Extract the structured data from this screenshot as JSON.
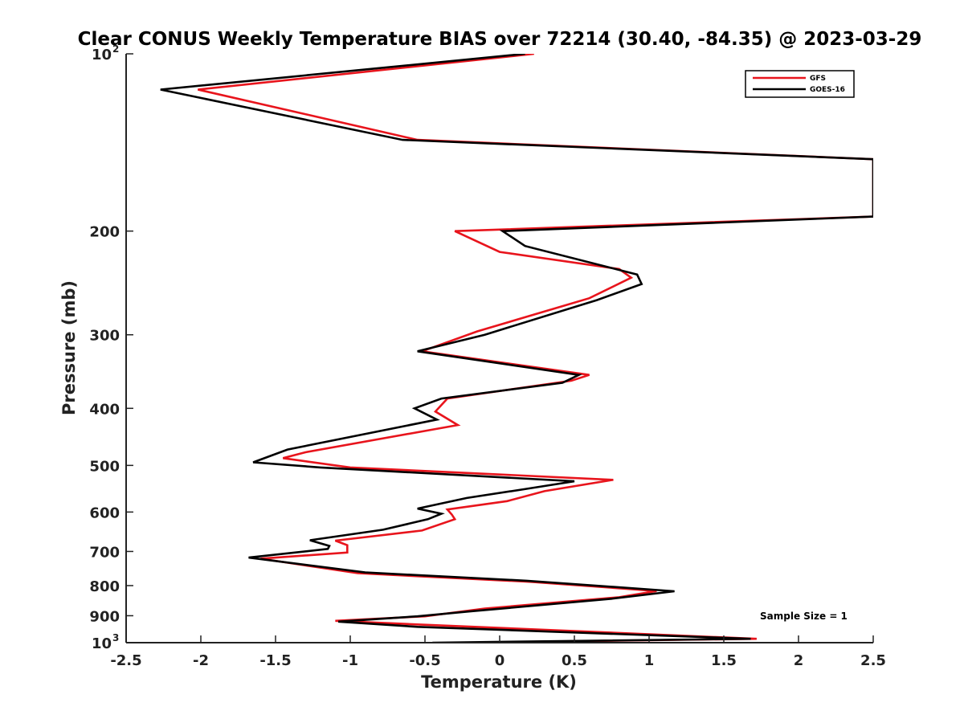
{
  "chart_data": {
    "type": "line",
    "title": "Clear CONUS Weekly Temperature BIAS over 72214 (30.40, -84.35) @ 2023-03-29",
    "xlabel": "Temperature (K)",
    "ylabel": "Pressure (mb)",
    "xlim": [
      -2.5,
      2.5
    ],
    "ylim": [
      100,
      1000
    ],
    "y_scale": "log",
    "y_reversed": true,
    "grid": false,
    "legend_position": "top-right",
    "x_ticks": [
      "-2.5",
      "-2",
      "-1.5",
      "-1",
      "-0.5",
      "0",
      "0.5",
      "1",
      "1.5",
      "2",
      "2.5"
    ],
    "y_ticks": [
      {
        "value": 100,
        "base": "10",
        "exp": "2"
      },
      {
        "value": 200,
        "label": "200"
      },
      {
        "value": 300,
        "label": "300"
      },
      {
        "value": 400,
        "label": "400"
      },
      {
        "value": 500,
        "label": "500"
      },
      {
        "value": 600,
        "label": "600"
      },
      {
        "value": 700,
        "label": "700"
      },
      {
        "value": 800,
        "label": "800"
      },
      {
        "value": 900,
        "label": "900"
      },
      {
        "value": 1000,
        "base": "10",
        "exp": "3"
      }
    ],
    "series": [
      {
        "name": "GFS",
        "color": "#e8141c",
        "points": [
          [
            0.23,
            100
          ],
          [
            -2.02,
            115
          ],
          [
            -0.55,
            140
          ],
          [
            2.5,
            151
          ],
          [
            2.5,
            189
          ],
          [
            -0.3,
            200
          ],
          [
            0.0,
            217
          ],
          [
            0.8,
            232
          ],
          [
            0.88,
            240
          ],
          [
            0.6,
            260
          ],
          [
            -0.15,
            296
          ],
          [
            -0.52,
            320
          ],
          [
            0.6,
            351
          ],
          [
            0.48,
            359
          ],
          [
            -0.35,
            385
          ],
          [
            -0.43,
            405
          ],
          [
            -0.28,
            427
          ],
          [
            -1.3,
            475
          ],
          [
            -1.45,
            486
          ],
          [
            -1.0,
            504
          ],
          [
            0.76,
            529
          ],
          [
            0.3,
            553
          ],
          [
            0.05,
            575
          ],
          [
            -0.35,
            594
          ],
          [
            -0.32,
            606
          ],
          [
            -0.3,
            617
          ],
          [
            -0.52,
            645
          ],
          [
            -1.1,
            671
          ],
          [
            -1.02,
            683
          ],
          [
            -1.02,
            703
          ],
          [
            -1.6,
            720
          ],
          [
            -0.95,
            762
          ],
          [
            0.2,
            788
          ],
          [
            1.05,
            817
          ],
          [
            0.8,
            837
          ],
          [
            -0.1,
            875
          ],
          [
            -0.5,
            902
          ],
          [
            -1.1,
            918
          ],
          [
            -0.6,
            930
          ],
          [
            1.72,
            985
          ],
          [
            -0.25,
            1000
          ]
        ]
      },
      {
        "name": "GOES-16",
        "color": "#000000",
        "points": [
          [
            0.17,
            100
          ],
          [
            -2.27,
            115
          ],
          [
            -0.65,
            140
          ],
          [
            2.5,
            151
          ],
          [
            2.5,
            189
          ],
          [
            0.02,
            200
          ],
          [
            0.17,
            212
          ],
          [
            0.92,
            237
          ],
          [
            0.95,
            246
          ],
          [
            0.65,
            262
          ],
          [
            -0.1,
            300
          ],
          [
            -0.55,
            320
          ],
          [
            0.53,
            351
          ],
          [
            0.42,
            362
          ],
          [
            -0.39,
            385
          ],
          [
            -0.57,
            400
          ],
          [
            -0.42,
            418
          ],
          [
            -1.42,
            470
          ],
          [
            -1.65,
            494
          ],
          [
            -1.2,
            504
          ],
          [
            0.5,
            532
          ],
          [
            0.18,
            548
          ],
          [
            -0.22,
            568
          ],
          [
            -0.55,
            592
          ],
          [
            -0.39,
            604
          ],
          [
            -0.48,
            617
          ],
          [
            -0.78,
            643
          ],
          [
            -1.27,
            670
          ],
          [
            -1.14,
            685
          ],
          [
            -1.15,
            693
          ],
          [
            -1.68,
            717
          ],
          [
            -0.9,
            760
          ],
          [
            0.18,
            785
          ],
          [
            1.17,
            818
          ],
          [
            0.75,
            842
          ],
          [
            -0.2,
            885
          ],
          [
            -0.55,
            902
          ],
          [
            -1.08,
            921
          ],
          [
            -0.55,
            940
          ],
          [
            1.68,
            985
          ],
          [
            -0.45,
            1000
          ]
        ]
      }
    ],
    "annotation": "Sample Size = 1"
  }
}
